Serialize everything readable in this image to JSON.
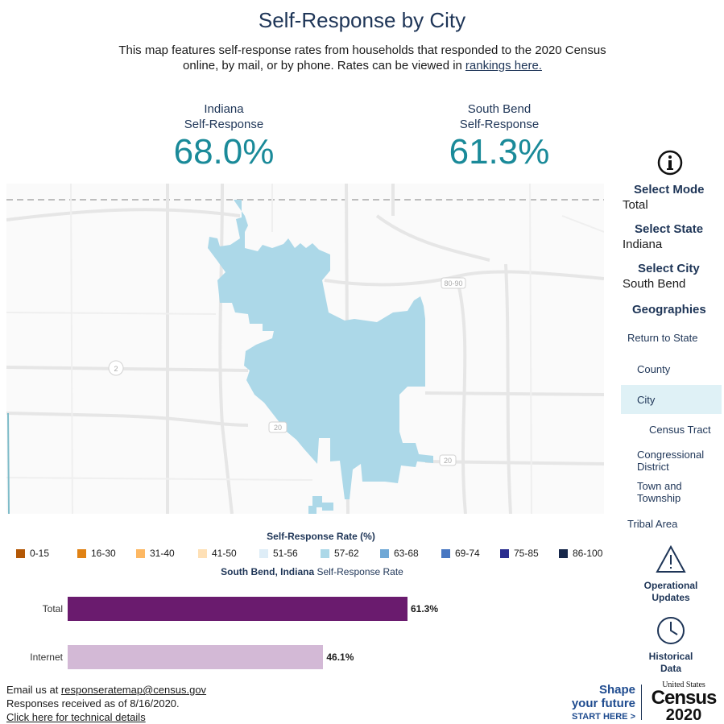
{
  "header": {
    "title": "Self-Response by City",
    "description": "This map features self-response rates from households that responded to the 2020 Census online, by mail, or by phone. Rates can be viewed in",
    "rankings_link": "rankings here."
  },
  "stats": {
    "state": {
      "label_line1": "Indiana",
      "label_line2": "Self-Response",
      "value": "68.0%"
    },
    "city": {
      "label_line1": "South Bend",
      "label_line2": "Self-Response",
      "value": "61.3%"
    }
  },
  "map": {
    "highway_labels": [
      "80-90",
      "2",
      "20",
      "20"
    ],
    "city_fill_color": "#acd8e8"
  },
  "sidebar": {
    "select_mode_label": "Select Mode",
    "select_mode_value": "Total",
    "select_state_label": "Select State",
    "select_state_value": "Indiana",
    "select_city_label": "Select City",
    "select_city_value": "South Bend",
    "geographies_label": "Geographies",
    "geographies": {
      "return": "Return to State",
      "county": "County",
      "city": "City",
      "tract": "Census Tract",
      "congressional": "Congressional District",
      "town": "Town and Township",
      "tribal": "Tribal Area"
    },
    "selected_geography": "City",
    "operational_updates": "Operational Updates",
    "historical_data": "Historical Data"
  },
  "legend": {
    "title": "Self-Response Rate (%)",
    "items": [
      {
        "label": "0-15",
        "color": "#b35806"
      },
      {
        "label": "16-30",
        "color": "#e08214"
      },
      {
        "label": "31-40",
        "color": "#fdb863"
      },
      {
        "label": "41-50",
        "color": "#fee0b6"
      },
      {
        "label": "51-56",
        "color": "#deedf7"
      },
      {
        "label": "57-62",
        "color": "#acd8e8"
      },
      {
        "label": "63-68",
        "color": "#6fa8d6"
      },
      {
        "label": "69-74",
        "color": "#4777c2"
      },
      {
        "label": "75-85",
        "color": "#2a2d8f"
      },
      {
        "label": "86-100",
        "color": "#16274a"
      }
    ]
  },
  "bars": {
    "heading_bold": "South Bend, Indiana",
    "heading_rest": " Self-Response Rate",
    "items": [
      {
        "label": "Total",
        "value": 61.3,
        "display": "61.3%",
        "color": "#6a1b6e"
      },
      {
        "label": "Internet",
        "value": 46.1,
        "display": "46.1%",
        "color": "#d3b9d6"
      }
    ]
  },
  "footer": {
    "email_prefix": "Email us at ",
    "email": "responseratemap@census.gov",
    "received": "Responses received as of 8/16/2020.",
    "technical": "Click here for technical details"
  },
  "branding": {
    "shape": "Shape",
    "your_future": "your future",
    "start_here": "START HERE >",
    "united_states": "United States",
    "census": "Census",
    "year": "2020"
  }
}
